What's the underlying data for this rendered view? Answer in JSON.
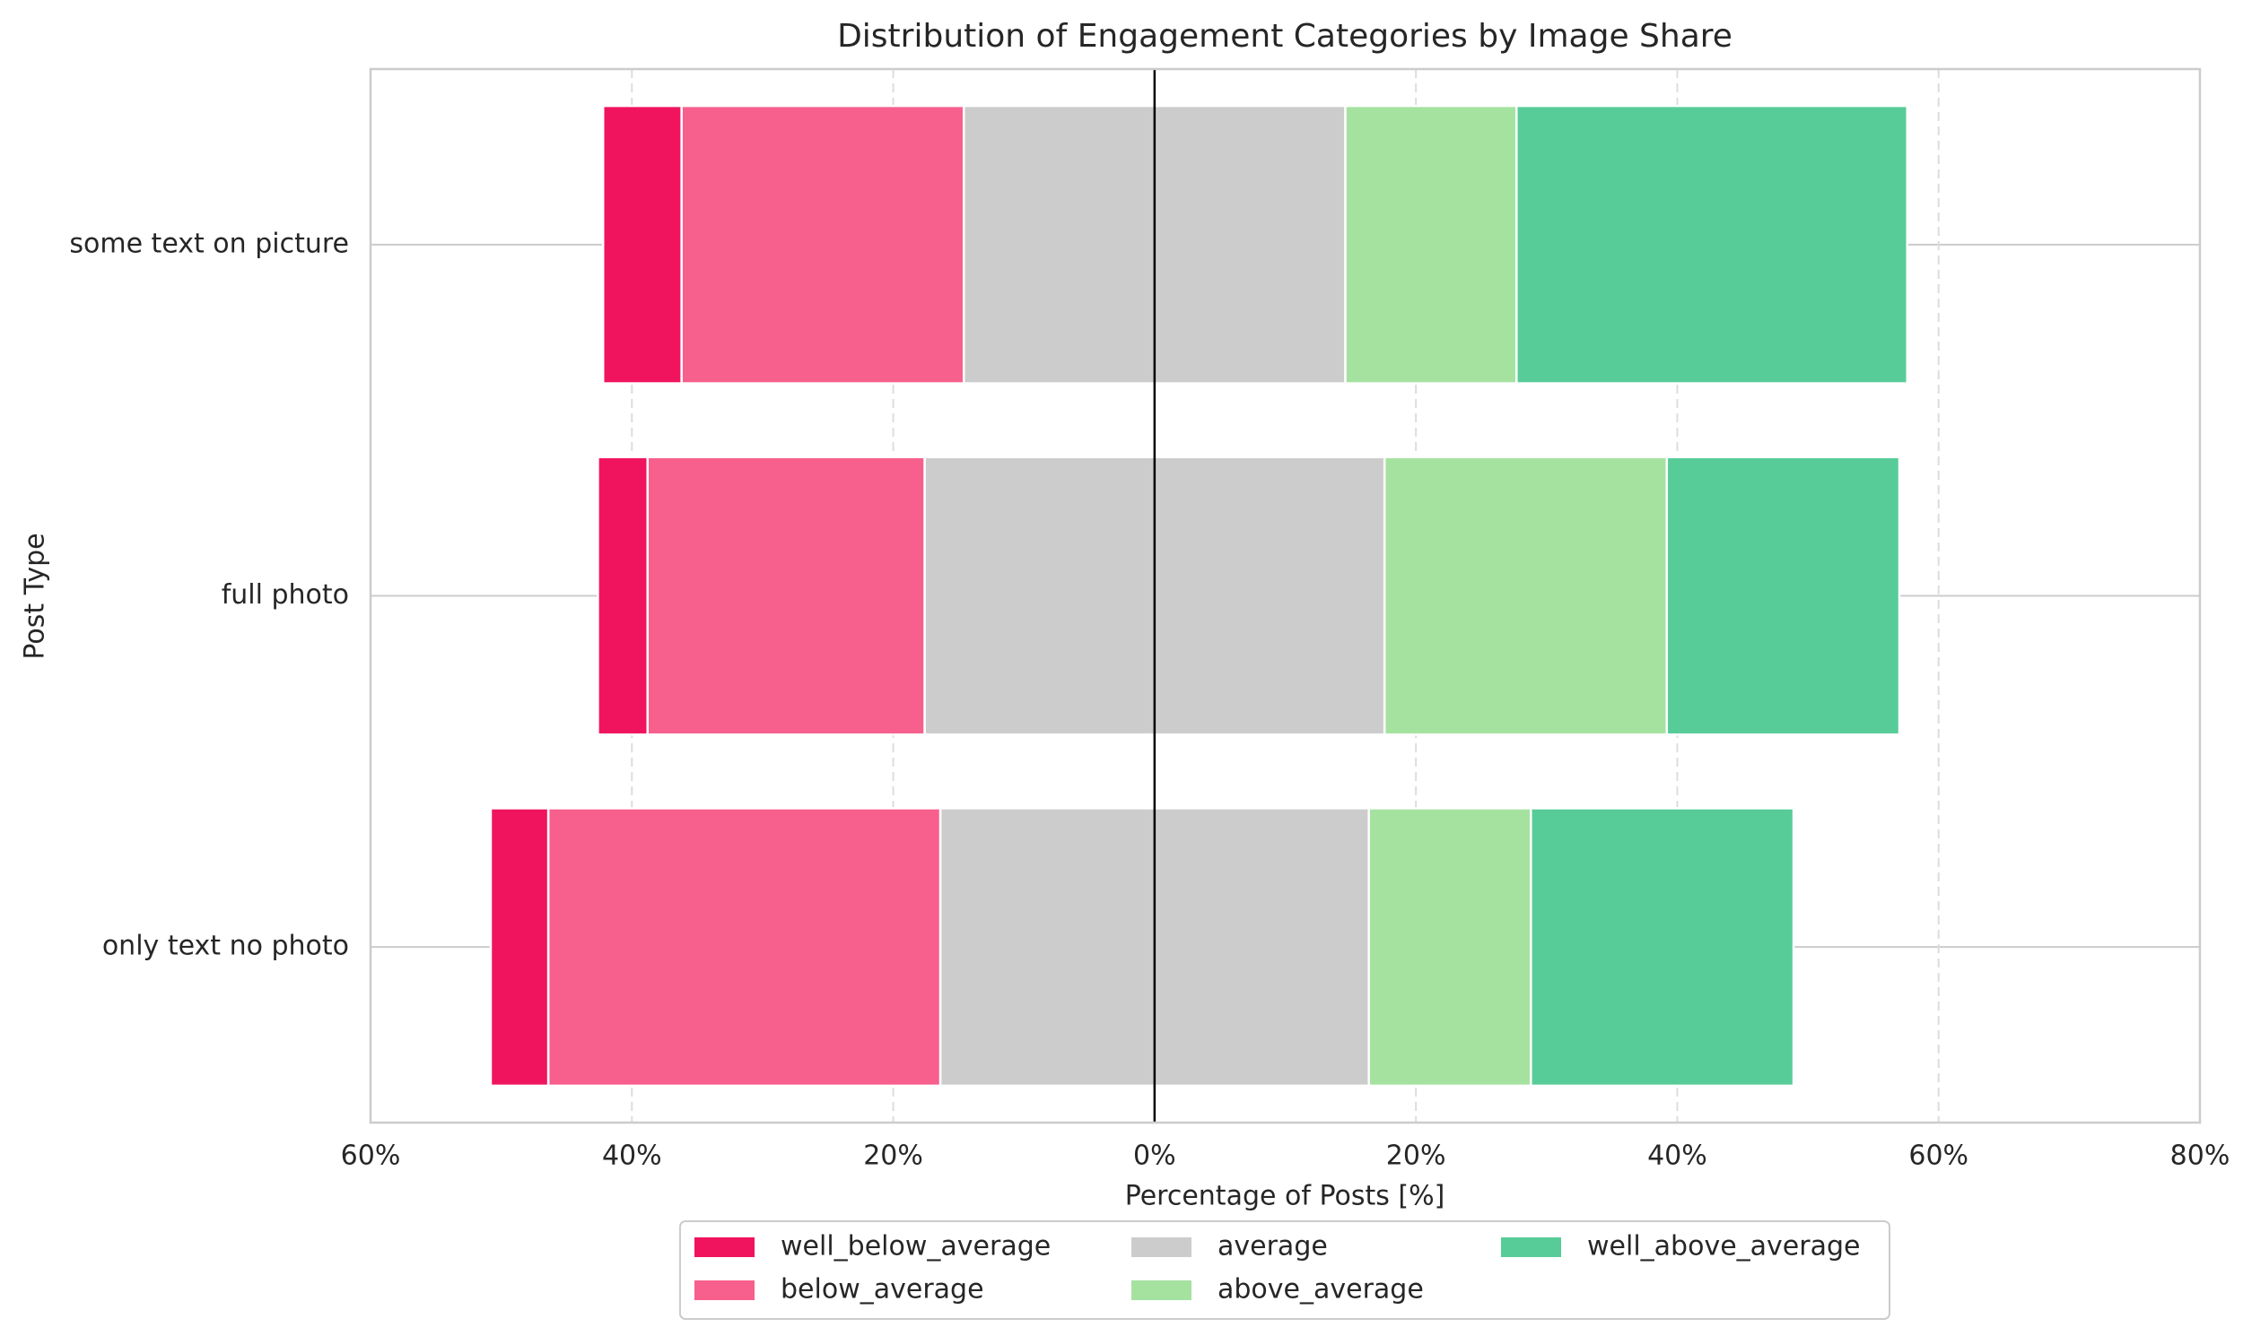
{
  "chart_data": {
    "type": "diverging_bar",
    "title": "Distribution of Engagement Categories by Image Share",
    "x_label": "Percentage of Posts [%]",
    "y_label": "Post Type",
    "categories": [
      "some text on picture",
      "full photo",
      "only text no photo"
    ],
    "series": [
      {
        "name": "well_below_average",
        "color": "#f0145f",
        "side": "left",
        "values": [
          6.0,
          3.8,
          4.4
        ]
      },
      {
        "name": "below_average",
        "color": "#f75f8c",
        "side": "left",
        "values": [
          21.6,
          21.2,
          30.0
        ]
      },
      {
        "name": "average",
        "color": "#cccccc",
        "side": "center",
        "values": [
          29.2,
          35.2,
          32.8
        ]
      },
      {
        "name": "above_average",
        "color": "#a5e2a0",
        "side": "right",
        "values": [
          13.1,
          21.6,
          12.4
        ]
      },
      {
        "name": "well_above_average",
        "color": "#57cc99",
        "side": "right",
        "values": [
          29.9,
          17.8,
          20.1
        ]
      }
    ],
    "xlim": [
      -60,
      80
    ],
    "xticks": [
      {
        "value": -60,
        "label": "60%"
      },
      {
        "value": -40,
        "label": "40%"
      },
      {
        "value": -20,
        "label": "20%"
      },
      {
        "value": 0,
        "label": "0%"
      },
      {
        "value": 20,
        "label": "20%"
      },
      {
        "value": 40,
        "label": "40%"
      },
      {
        "value": 60,
        "label": "60%"
      },
      {
        "value": 80,
        "label": "80%"
      }
    ],
    "grid": true,
    "legend": "bottom"
  }
}
